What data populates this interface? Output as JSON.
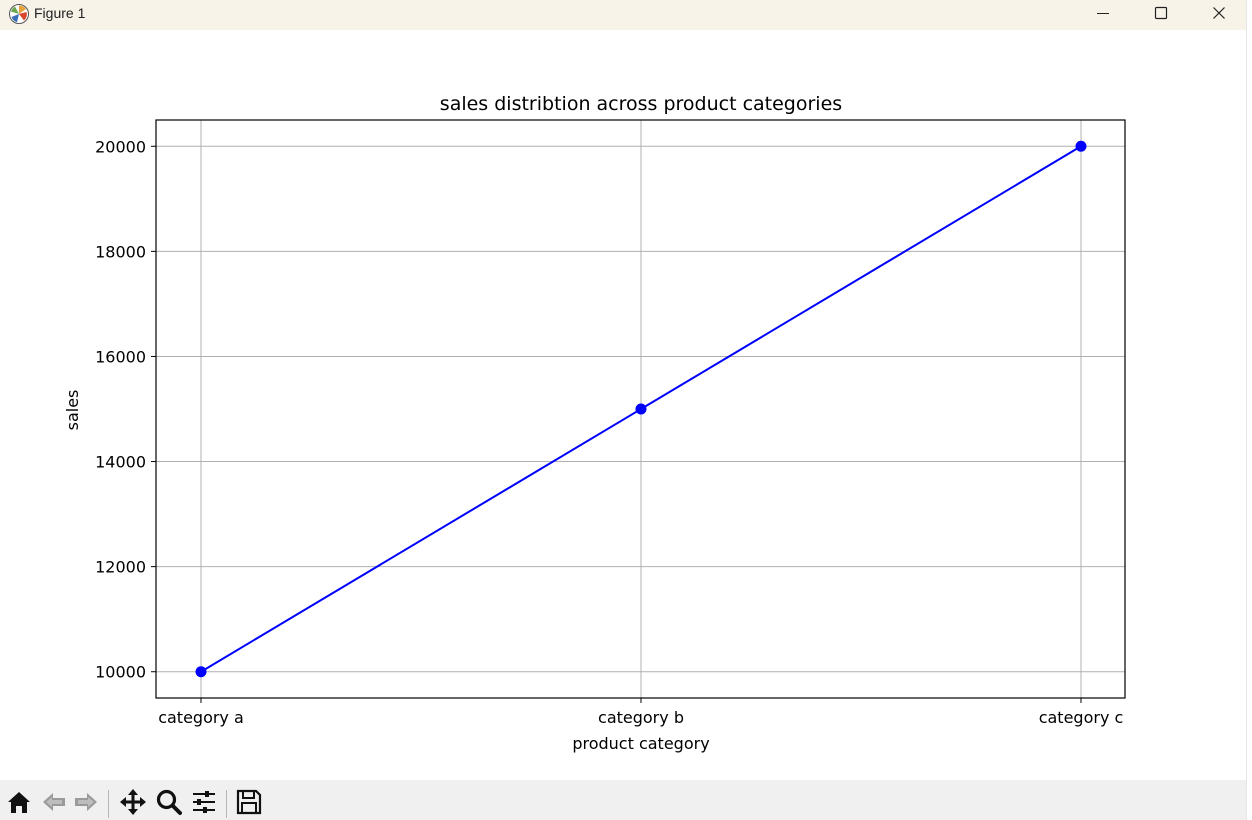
{
  "window": {
    "title": "Figure 1",
    "icons": [
      "matplotlib-logo-icon",
      "minimize-icon",
      "maximize-icon",
      "close-icon"
    ]
  },
  "toolbar": {
    "icons": [
      "home-icon",
      "back-arrow-icon",
      "forward-arrow-icon",
      "pan-icon",
      "zoom-icon",
      "configure-subplots-icon",
      "save-icon"
    ]
  },
  "colors": {
    "line": "#0000ff",
    "grid": "#b0b0b0",
    "titlebar": "#f7f3e8",
    "toolbar": "#f0f0f0"
  },
  "chart_data": {
    "type": "line",
    "title": "sales distribtion across product categories",
    "xlabel": "product category",
    "ylabel": "sales",
    "categories": [
      "category a",
      "category b",
      "category c"
    ],
    "values": [
      10000,
      15000,
      20000
    ],
    "ylim": [
      9500,
      20500
    ],
    "yticks": [
      10000,
      12000,
      14000,
      16000,
      18000,
      20000
    ],
    "ytick_labels": [
      "10000",
      "12000",
      "14000",
      "16000",
      "18000",
      "20000"
    ],
    "grid": true,
    "marker": "circle"
  }
}
